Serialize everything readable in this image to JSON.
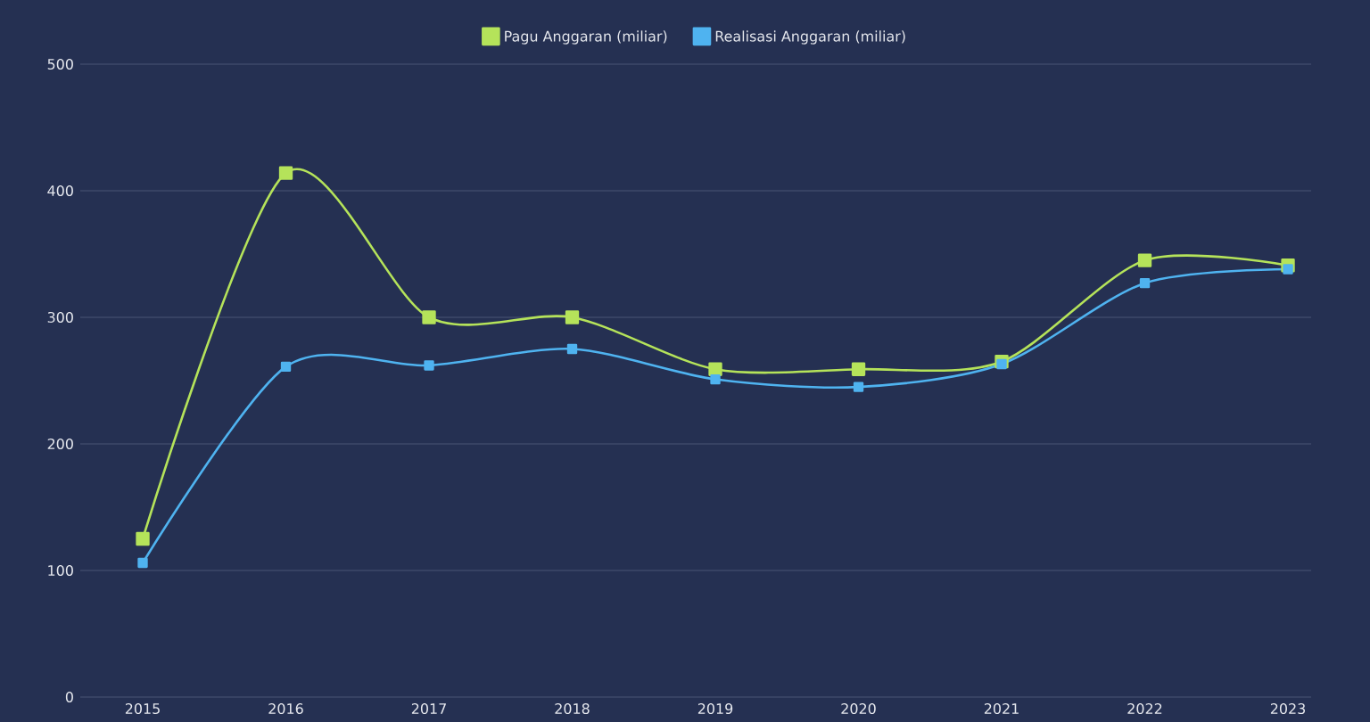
{
  "chart_data": {
    "type": "line",
    "categories": [
      "2015",
      "2016",
      "2017",
      "2018",
      "2019",
      "2020",
      "2021",
      "2022",
      "2023"
    ],
    "series": [
      {
        "name": "Pagu Anggaran (miliar)",
        "color": "#b5e35a",
        "values": [
          125,
          414,
          300,
          300,
          259,
          259,
          265,
          345,
          341
        ]
      },
      {
        "name": "Realisasi Anggaran (miliar)",
        "color": "#4fb3f0",
        "values": [
          106,
          261,
          262,
          275,
          251,
          245,
          263,
          327,
          338
        ]
      }
    ],
    "ylim": [
      0,
      500
    ],
    "yticks": [
      0,
      100,
      200,
      300,
      400,
      500
    ],
    "grid": "y",
    "legend": "top",
    "marker": "square",
    "line_style": "solid"
  }
}
